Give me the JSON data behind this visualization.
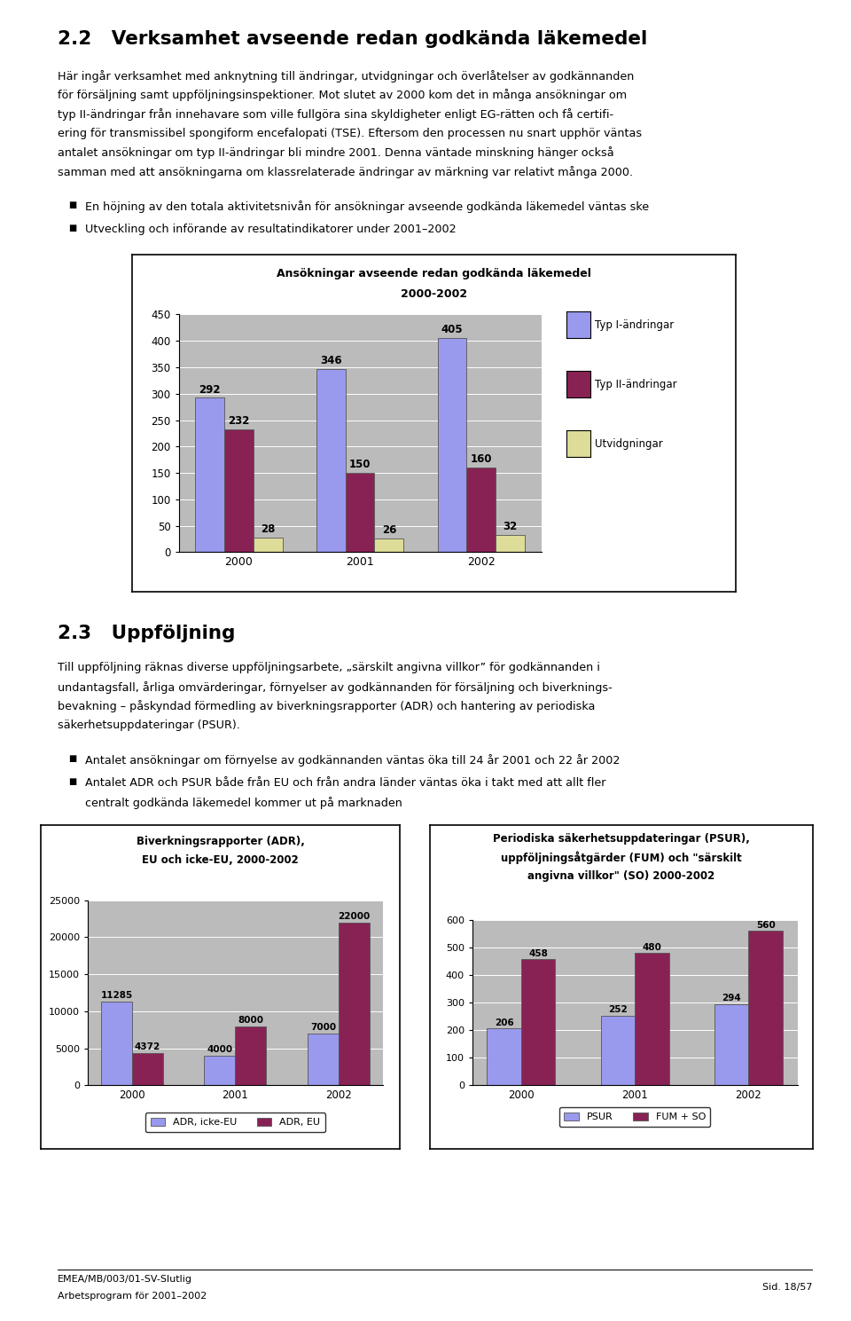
{
  "title_22": "2.2   Verksamhet avseende redan godkända läkemedel",
  "para1_lines": [
    "Här ingår verksamhet med anknytning till ändringar, utvidgningar och överlåtelser av godkännanden",
    "för försäljning samt uppföljningsinspektioner. Mot slutet av 2000 kom det in många ansökningar om",
    "typ II-ändringar från innehavare som ville fullgöra sina skyldigheter enligt EG-rätten och få certifi-",
    "ering för transmissibel spongiform encefalopati (TSE). Eftersom den processen nu snart upphör väntas",
    "antalet ansökningar om typ II-ändringar bli mindre 2001. Denna väntade minskning hänger också",
    "samman med att ansökningarna om klassrelaterade ändringar av märkning var relativt många 2000."
  ],
  "bullet1_22": "En höjning av den totala aktivitetsnivån för ansökningar avseende godkända läkemedel väntas ske",
  "bullet2_22": "Utveckling och införande av resultatindikatorer under 2001–2002",
  "chart1_title1": "Ansökningar avseende redan godkända läkemedel",
  "chart1_title2": "2000-2002",
  "chart1_years": [
    "2000",
    "2001",
    "2002"
  ],
  "chart1_typ1": [
    292,
    346,
    405
  ],
  "chart1_typ2": [
    232,
    150,
    160
  ],
  "chart1_utv": [
    28,
    26,
    32
  ],
  "chart1_ylim": [
    0,
    450
  ],
  "chart1_yticks": [
    0,
    50,
    100,
    150,
    200,
    250,
    300,
    350,
    400,
    450
  ],
  "chart1_legend": [
    "Typ I-ändringar",
    "Typ II-ändringar",
    "Utvidgningar"
  ],
  "chart1_colors": [
    "#9999ee",
    "#882255",
    "#dddd99"
  ],
  "title_23": "2.3   Uppföljning",
  "para2_lines": [
    "Till uppföljning räknas diverse uppföljningsarbete, „särskilt angivna villkor” för godkännanden i",
    "undantagsfall, årliga omvärderingar, förnyelser av godkännanden för försäljning och biverknings-",
    "bevakning – påskyndad förmedling av biverkningsrapporter (ADR) och hantering av periodiska",
    "säkerhetsuppdateringar (PSUR)."
  ],
  "bullet1_23": "Antalet ansökningar om förnyelse av godkännanden väntas öka till 24 år 2001 och 22 år 2002",
  "bullet2_23a": "Antalet ADR och PSUR både från EU och från andra länder väntas öka i takt med att allt fler",
  "bullet2_23b": "centralt godkända läkemedel kommer ut på marknaden",
  "chart2_title1": "Biverkningsrapporter (ADR),",
  "chart2_title2": "EU och icke-EU, 2000-2002",
  "chart2_years": [
    "2000",
    "2001",
    "2002"
  ],
  "chart2_icke_eu": [
    11285,
    4000,
    7000
  ],
  "chart2_eu": [
    4372,
    8000,
    22000
  ],
  "chart2_ylim": [
    0,
    25000
  ],
  "chart2_yticks": [
    0,
    5000,
    10000,
    15000,
    20000,
    25000
  ],
  "chart2_legend": [
    "ADR, icke-EU",
    "ADR, EU"
  ],
  "chart2_colors": [
    "#9999ee",
    "#882255"
  ],
  "chart3_title1": "Periodiska säkerhetsuppdateringar (PSUR),",
  "chart3_title2": "uppföljningsåtgärder (FUM) och \"särskilt",
  "chart3_title3": "angivna villkor\" (SO) 2000-2002",
  "chart3_years": [
    "2000",
    "2001",
    "2002"
  ],
  "chart3_psur": [
    206,
    252,
    294
  ],
  "chart3_fum": [
    458,
    480,
    560
  ],
  "chart3_ylim": [
    0,
    600
  ],
  "chart3_yticks": [
    0,
    100,
    200,
    300,
    400,
    500,
    600
  ],
  "chart3_legend": [
    "PSUR",
    "FUM + SO"
  ],
  "chart3_colors": [
    "#9999ee",
    "#882255"
  ],
  "footer_left1": "EMEA/MB/003/01-SV-Slutlig",
  "footer_left2": "Arbetsprogram för 2001–2002",
  "footer_right": "Sid. 18/57",
  "chart_bg": "#bbbbbb",
  "chart_box_bg": "white"
}
